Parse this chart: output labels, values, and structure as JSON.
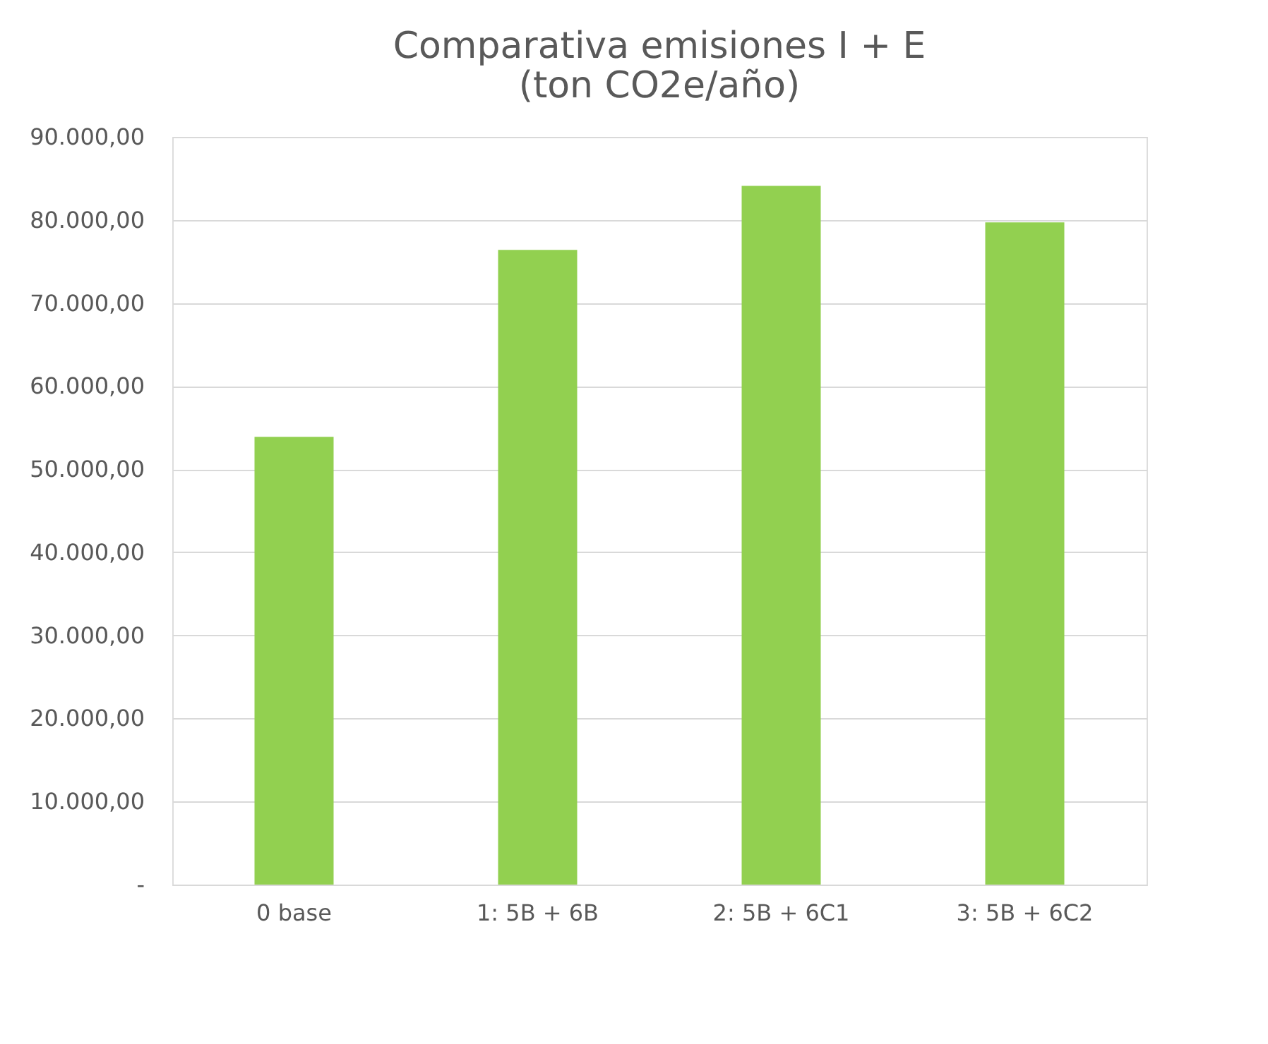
{
  "chart_data": {
    "type": "bar",
    "title": "Comparativa emisiones I + E\n(ton CO2e/año)",
    "categories": [
      "0 base",
      "1: 5B + 6B",
      "2: 5B + 6C1",
      "3: 5B + 6C2"
    ],
    "values": [
      53900,
      76400,
      84100,
      79700
    ],
    "color": "#92d050",
    "ylim": [
      0,
      90000
    ],
    "yticks": [
      {
        "value": 0,
        "label": "-"
      },
      {
        "value": 10000,
        "label": "10.000,00"
      },
      {
        "value": 20000,
        "label": "20.000,00"
      },
      {
        "value": 30000,
        "label": "30.000,00"
      },
      {
        "value": 40000,
        "label": "40.000,00"
      },
      {
        "value": 50000,
        "label": "50.000,00"
      },
      {
        "value": 60000,
        "label": "60.000,00"
      },
      {
        "value": 70000,
        "label": "70.000,00"
      },
      {
        "value": 80000,
        "label": "80.000,00"
      },
      {
        "value": 90000,
        "label": "90.000,00"
      }
    ],
    "grid": "y"
  }
}
